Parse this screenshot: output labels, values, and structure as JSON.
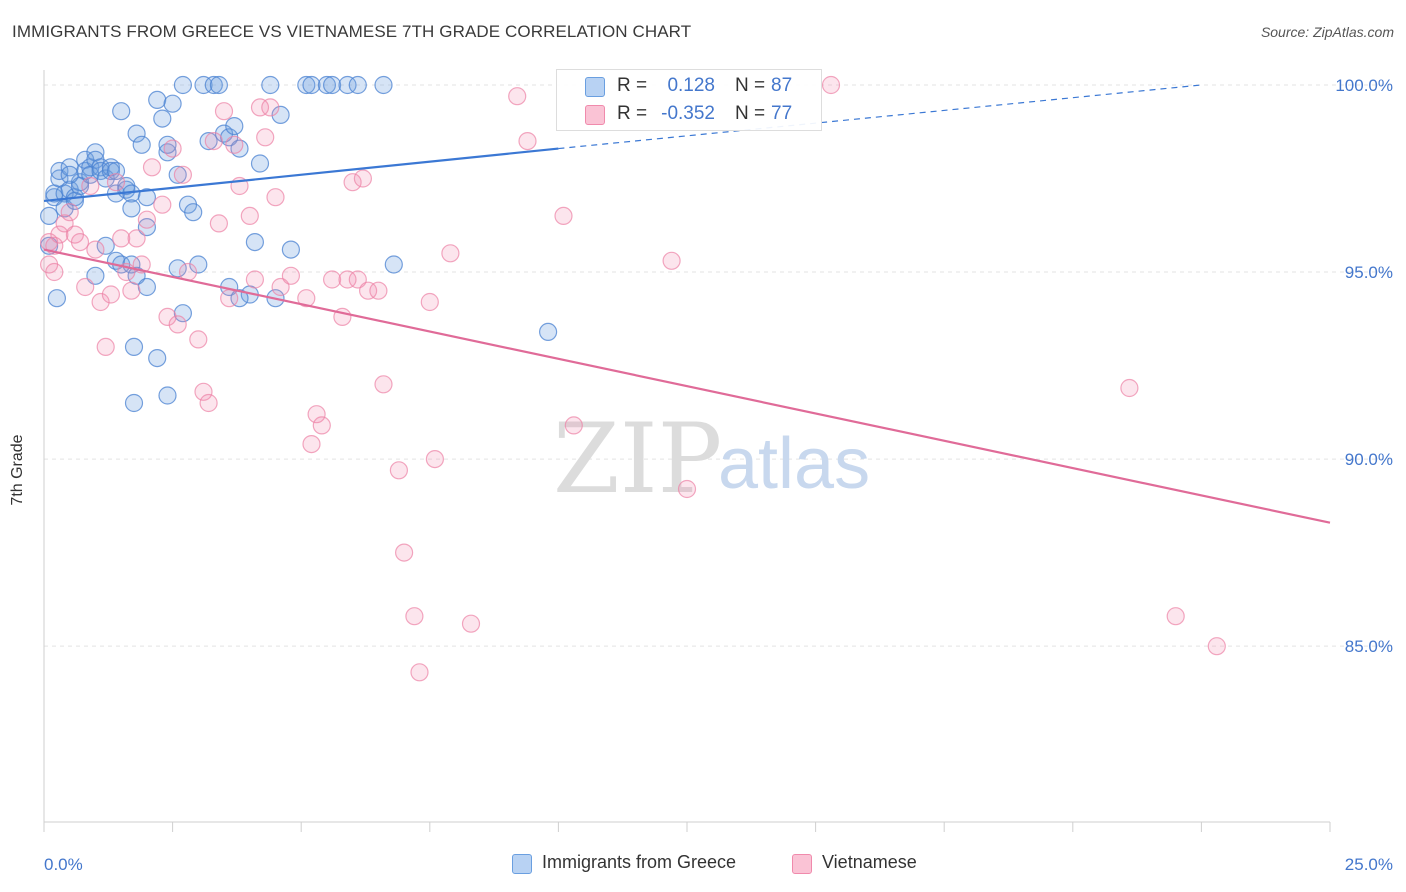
{
  "title": "IMMIGRANTS FROM GREECE VS VIETNAMESE 7TH GRADE CORRELATION CHART",
  "source": "Source: ZipAtlas.com",
  "watermark": {
    "zip": "ZIP",
    "atlas": "atlas"
  },
  "legend": {
    "r_label": "R =",
    "n_label": "N =",
    "rows": [
      {
        "series": "Immigrants from Greece",
        "r": "0.128",
        "n": "87",
        "color": "#6a9fe0"
      },
      {
        "series": "Vietnamese",
        "r": "-0.352",
        "n": "77",
        "color": "#f08aac"
      }
    ]
  },
  "chart_data": {
    "type": "scatter",
    "title": "IMMIGRANTS FROM GREECE VS VIETNAMESE 7TH GRADE CORRELATION CHART",
    "xlabel": "",
    "ylabel": "7th Grade",
    "xlim": [
      0,
      25
    ],
    "ylim": [
      80.3,
      100.4
    ],
    "x_tick_labels": [
      "0.0%",
      "25.0%"
    ],
    "y_ticks": [
      85,
      90,
      95,
      100
    ],
    "y_tick_labels": [
      "85.0%",
      "90.0%",
      "95.0%",
      "100.0%"
    ],
    "grid": true,
    "legend_position": "top-center",
    "series": [
      {
        "name": "Immigrants from Greece",
        "color": "#6a9fe0",
        "trend": {
          "x": [
            0,
            10.0
          ],
          "y": [
            96.9,
            98.3
          ],
          "dashed_to": [
            22.5,
            100.0
          ]
        },
        "points": [
          [
            0.1,
            96.5
          ],
          [
            0.1,
            95.7
          ],
          [
            0.2,
            97.0
          ],
          [
            0.2,
            97.1
          ],
          [
            0.3,
            97.5
          ],
          [
            0.3,
            97.7
          ],
          [
            0.4,
            97.1
          ],
          [
            0.4,
            96.7
          ],
          [
            0.5,
            97.2
          ],
          [
            0.5,
            97.8
          ],
          [
            0.6,
            97.0
          ],
          [
            0.6,
            96.9
          ],
          [
            0.7,
            97.4
          ],
          [
            0.7,
            97.3
          ],
          [
            0.8,
            97.7
          ],
          [
            0.8,
            98.0
          ],
          [
            0.9,
            97.8
          ],
          [
            0.9,
            97.6
          ],
          [
            1.0,
            98.2
          ],
          [
            1.0,
            98.0
          ],
          [
            1.1,
            97.8
          ],
          [
            1.1,
            97.7
          ],
          [
            1.2,
            97.5
          ],
          [
            1.3,
            97.8
          ],
          [
            1.3,
            97.7
          ],
          [
            1.4,
            97.7
          ],
          [
            1.4,
            97.1
          ],
          [
            1.5,
            99.3
          ],
          [
            1.6,
            97.2
          ],
          [
            1.6,
            97.3
          ],
          [
            1.7,
            97.1
          ],
          [
            1.7,
            96.7
          ],
          [
            1.8,
            98.7
          ],
          [
            1.9,
            98.4
          ],
          [
            2.0,
            97.0
          ],
          [
            2.0,
            96.2
          ],
          [
            2.2,
            99.6
          ],
          [
            2.3,
            99.1
          ],
          [
            2.4,
            98.2
          ],
          [
            2.4,
            98.4
          ],
          [
            2.5,
            99.5
          ],
          [
            2.6,
            97.6
          ],
          [
            2.7,
            100.0
          ],
          [
            2.8,
            96.8
          ],
          [
            2.9,
            96.6
          ],
          [
            3.0,
            95.2
          ],
          [
            3.1,
            100.0
          ],
          [
            3.2,
            98.5
          ],
          [
            3.3,
            100.0
          ],
          [
            3.4,
            100.0
          ],
          [
            3.5,
            98.7
          ],
          [
            3.6,
            98.6
          ],
          [
            3.7,
            98.9
          ],
          [
            3.8,
            98.3
          ],
          [
            4.0,
            94.4
          ],
          [
            4.1,
            95.8
          ],
          [
            4.2,
            97.9
          ],
          [
            4.4,
            100.0
          ],
          [
            4.5,
            94.3
          ],
          [
            4.6,
            99.2
          ],
          [
            4.8,
            95.6
          ],
          [
            5.1,
            100.0
          ],
          [
            5.2,
            100.0
          ],
          [
            5.5,
            100.0
          ],
          [
            5.6,
            100.0
          ],
          [
            5.9,
            100.0
          ],
          [
            6.1,
            100.0
          ],
          [
            6.6,
            100.0
          ],
          [
            6.8,
            95.2
          ],
          [
            9.8,
            93.4
          ],
          [
            0.25,
            94.3
          ],
          [
            0.5,
            97.6
          ],
          [
            1.0,
            94.9
          ],
          [
            1.2,
            95.7
          ],
          [
            1.4,
            95.3
          ],
          [
            1.5,
            95.2
          ],
          [
            1.7,
            95.2
          ],
          [
            1.8,
            94.9
          ],
          [
            1.75,
            91.5
          ],
          [
            1.75,
            93.0
          ],
          [
            2.0,
            94.6
          ],
          [
            2.2,
            92.7
          ],
          [
            2.4,
            91.7
          ],
          [
            2.6,
            95.1
          ],
          [
            2.7,
            93.9
          ],
          [
            3.6,
            94.6
          ],
          [
            3.8,
            94.3
          ]
        ]
      },
      {
        "name": "Vietnamese",
        "color": "#f08aac",
        "trend": {
          "x": [
            0,
            25
          ],
          "y": [
            95.6,
            88.3
          ]
        },
        "points": [
          [
            0.1,
            95.8
          ],
          [
            0.1,
            95.2
          ],
          [
            0.2,
            95.7
          ],
          [
            0.2,
            95.0
          ],
          [
            0.3,
            96.0
          ],
          [
            0.4,
            96.3
          ],
          [
            0.5,
            96.6
          ],
          [
            0.6,
            96.0
          ],
          [
            0.7,
            95.8
          ],
          [
            0.8,
            94.6
          ],
          [
            0.9,
            97.3
          ],
          [
            1.0,
            95.6
          ],
          [
            1.1,
            94.2
          ],
          [
            1.2,
            93.0
          ],
          [
            1.3,
            94.4
          ],
          [
            1.4,
            97.4
          ],
          [
            1.5,
            95.9
          ],
          [
            1.6,
            95.0
          ],
          [
            1.7,
            94.5
          ],
          [
            1.8,
            95.9
          ],
          [
            1.9,
            95.2
          ],
          [
            2.0,
            96.4
          ],
          [
            2.1,
            97.8
          ],
          [
            2.3,
            96.8
          ],
          [
            2.4,
            93.8
          ],
          [
            2.5,
            98.3
          ],
          [
            2.6,
            93.6
          ],
          [
            2.7,
            97.6
          ],
          [
            2.8,
            95.0
          ],
          [
            3.0,
            93.2
          ],
          [
            3.1,
            91.8
          ],
          [
            3.2,
            91.5
          ],
          [
            3.3,
            98.5
          ],
          [
            3.4,
            96.3
          ],
          [
            3.5,
            99.3
          ],
          [
            3.6,
            94.3
          ],
          [
            3.7,
            98.4
          ],
          [
            3.8,
            97.3
          ],
          [
            4.0,
            96.5
          ],
          [
            4.1,
            94.8
          ],
          [
            4.2,
            99.4
          ],
          [
            4.3,
            98.6
          ],
          [
            4.4,
            99.4
          ],
          [
            4.5,
            97.0
          ],
          [
            4.6,
            94.6
          ],
          [
            4.8,
            94.9
          ],
          [
            5.1,
            94.3
          ],
          [
            5.2,
            90.4
          ],
          [
            5.3,
            91.2
          ],
          [
            5.4,
            90.9
          ],
          [
            5.6,
            94.8
          ],
          [
            5.8,
            93.8
          ],
          [
            5.9,
            94.8
          ],
          [
            6.0,
            97.4
          ],
          [
            6.1,
            94.8
          ],
          [
            6.2,
            97.5
          ],
          [
            6.3,
            94.5
          ],
          [
            6.5,
            94.5
          ],
          [
            6.6,
            92.0
          ],
          [
            6.9,
            89.7
          ],
          [
            7.0,
            87.5
          ],
          [
            7.2,
            85.8
          ],
          [
            7.3,
            84.3
          ],
          [
            7.5,
            94.2
          ],
          [
            7.6,
            90.0
          ],
          [
            7.9,
            95.5
          ],
          [
            8.3,
            85.6
          ],
          [
            9.2,
            99.7
          ],
          [
            9.4,
            98.5
          ],
          [
            10.1,
            96.5
          ],
          [
            10.3,
            90.9
          ],
          [
            12.2,
            95.3
          ],
          [
            12.5,
            89.2
          ],
          [
            15.3,
            100.0
          ],
          [
            21.1,
            91.9
          ],
          [
            22.0,
            85.8
          ],
          [
            22.8,
            85.0
          ]
        ]
      }
    ]
  },
  "bottom_legend": [
    {
      "label": "Immigrants from Greece",
      "color": "#6a9fe0"
    },
    {
      "label": "Vietnamese",
      "color": "#f08aac"
    }
  ]
}
